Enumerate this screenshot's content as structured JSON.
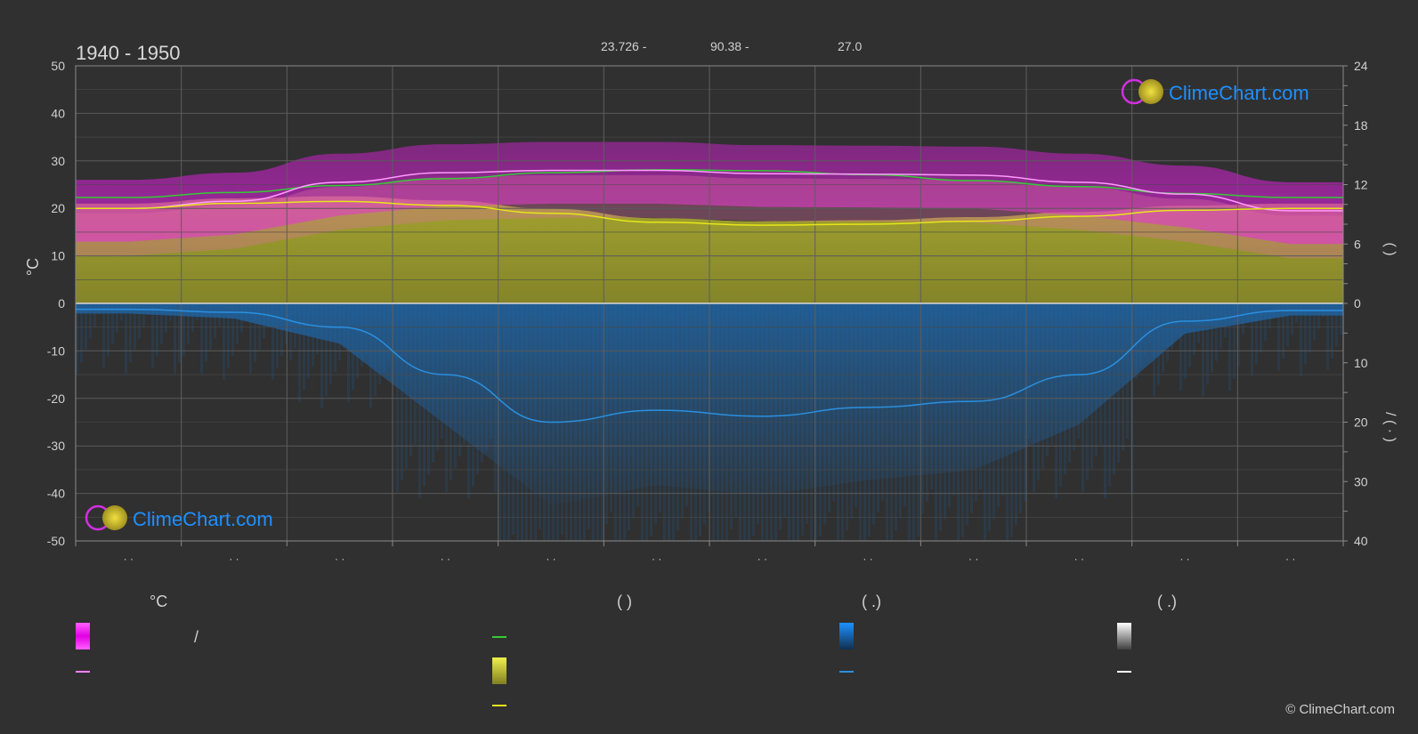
{
  "header": {
    "period": "1940 - 1950",
    "stat1": "23.726 -",
    "stat2": "90.38 -",
    "stat3": "27.0"
  },
  "branding": {
    "logo_text": "ClimeChart.com",
    "copyright": "© ClimeChart.com"
  },
  "colors": {
    "background": "#303030",
    "temp_band": "#e020e0",
    "sunshine_band": "#c8c83a",
    "precip_band": "#1e78c8",
    "max_temp_line": "#ff99ff",
    "daylight_line": "#33cc33",
    "sunshine_line": "#e6e61a",
    "rain_line": "#2a90e0",
    "brand_blue": "#1e90ff"
  },
  "legend": {
    "col1_header": "°C",
    "col1_slash": "/",
    "col2_header": "(           )",
    "col3_header": "(    .)",
    "col4_header": "(    .)"
  },
  "chart_data": {
    "type": "area",
    "month_ticks": [
      "· ·",
      "· ·",
      "· ·",
      "· ·",
      "· ·",
      "· ·",
      "· ·",
      "· ·",
      "· ·",
      "· ·",
      "· ·",
      "· ·"
    ],
    "y_left": {
      "label": "°C",
      "ticks": [
        50,
        40,
        30,
        20,
        10,
        0,
        -10,
        -20,
        -30,
        -40,
        -50
      ],
      "range": [
        -50,
        50
      ]
    },
    "y_right_top": {
      "label": "(    )",
      "ticks": [
        24,
        18,
        12,
        6,
        0
      ],
      "range": [
        0,
        24
      ]
    },
    "y_right_bottom": {
      "label": "/   (  ·  )",
      "ticks": [
        0,
        10,
        20,
        30,
        40
      ],
      "range": [
        0,
        40
      ]
    },
    "series": [
      {
        "key": "max_temp",
        "values": [
          20,
          21.5,
          25.5,
          27.5,
          28,
          28,
          27.3,
          27.2,
          27,
          25.5,
          23,
          19.5
        ]
      },
      {
        "key": "daylight_hours",
        "values": [
          10.7,
          11.2,
          11.9,
          12.6,
          13.2,
          13.5,
          13.4,
          13,
          12.4,
          11.8,
          11.1,
          10.7
        ]
      },
      {
        "key": "sunshine_hours",
        "values": [
          9.6,
          10.1,
          10.3,
          9.9,
          9.1,
          8.2,
          7.9,
          8,
          8.3,
          8.8,
          9.4,
          9.6
        ]
      },
      {
        "key": "precipitation_mm",
        "values": [
          1,
          1.5,
          4,
          12,
          20,
          18,
          19,
          17.5,
          16.5,
          12,
          3,
          1.2
        ]
      }
    ]
  }
}
